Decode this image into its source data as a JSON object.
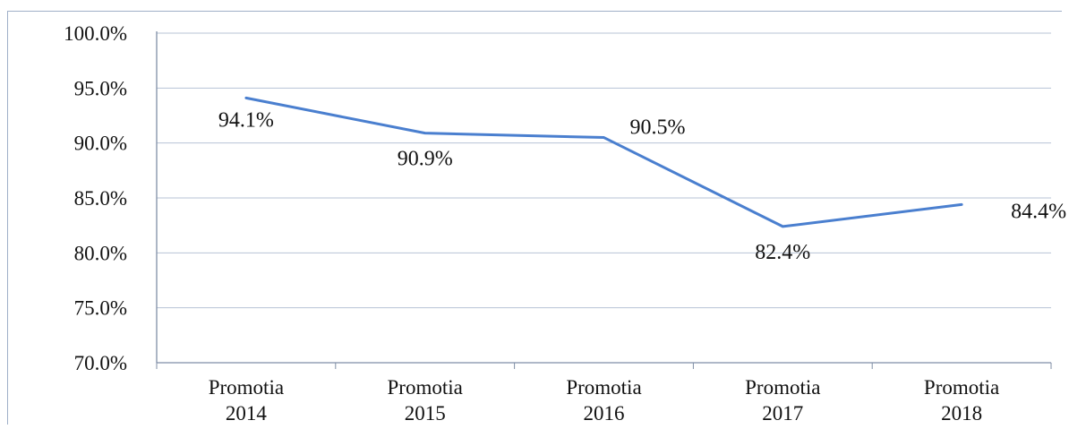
{
  "chart_data": {
    "type": "line",
    "categories": [
      [
        "Promotia",
        "2014"
      ],
      [
        "Promotia",
        "2015"
      ],
      [
        "Promotia",
        "2016"
      ],
      [
        "Promotia",
        "2017"
      ],
      [
        "Promotia",
        "2018"
      ]
    ],
    "series": [
      {
        "values": [
          94.1,
          90.9,
          90.5,
          82.4,
          84.4
        ],
        "data_labels": [
          "94.1%",
          "90.9%",
          "90.5%",
          "82.4%",
          "84.4%"
        ],
        "color": "#4a7fcf"
      }
    ],
    "ylim": [
      70,
      100
    ],
    "y_ticks": [
      100,
      95,
      90,
      85,
      80,
      75,
      70
    ],
    "y_tick_labels": [
      "100.0%",
      "95.0%",
      "90.0%",
      "85.0%",
      "80.0%",
      "75.0%",
      "70.0%"
    ],
    "title": "",
    "xlabel": "",
    "ylabel": "",
    "grid": true,
    "legend": "none",
    "colors": {
      "line": "#4a7fcf",
      "grid": "#b7c3d6",
      "axis": "#7f8ea6",
      "text": "#111111"
    }
  }
}
